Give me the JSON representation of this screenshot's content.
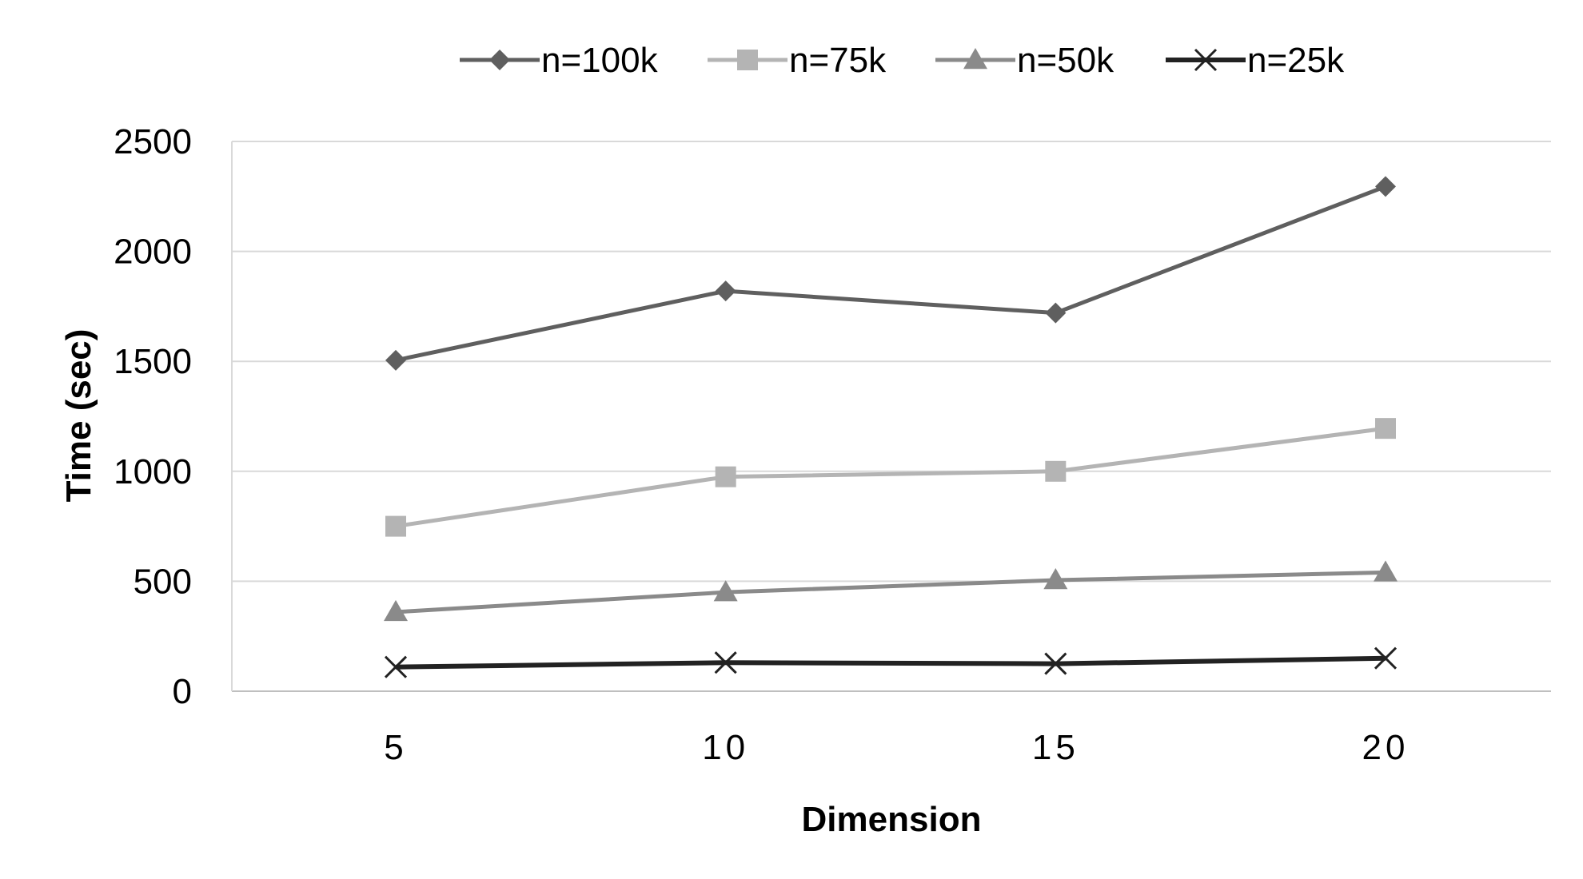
{
  "chart_data": {
    "type": "line",
    "title": "",
    "xlabel": "Dimension",
    "ylabel": "Time (sec)",
    "x": [
      5,
      10,
      15,
      20
    ],
    "ylim": [
      0,
      2500
    ],
    "yticks": [
      0,
      500,
      1000,
      1500,
      2000,
      2500
    ],
    "grid": "horizontal",
    "legend_position": "top",
    "series": [
      {
        "name": "n=100k",
        "values": [
          1505,
          1820,
          1720,
          2295
        ],
        "marker": "diamond",
        "color": "#5f5f5f"
      },
      {
        "name": "n=75k",
        "values": [
          750,
          975,
          1000,
          1195
        ],
        "marker": "square",
        "color": "#b4b4b4"
      },
      {
        "name": "n=50k",
        "values": [
          360,
          450,
          505,
          540
        ],
        "marker": "triangle",
        "color": "#8a8a8a"
      },
      {
        "name": "n=25k",
        "values": [
          110,
          130,
          125,
          150
        ],
        "marker": "x",
        "color": "#222222"
      }
    ]
  }
}
